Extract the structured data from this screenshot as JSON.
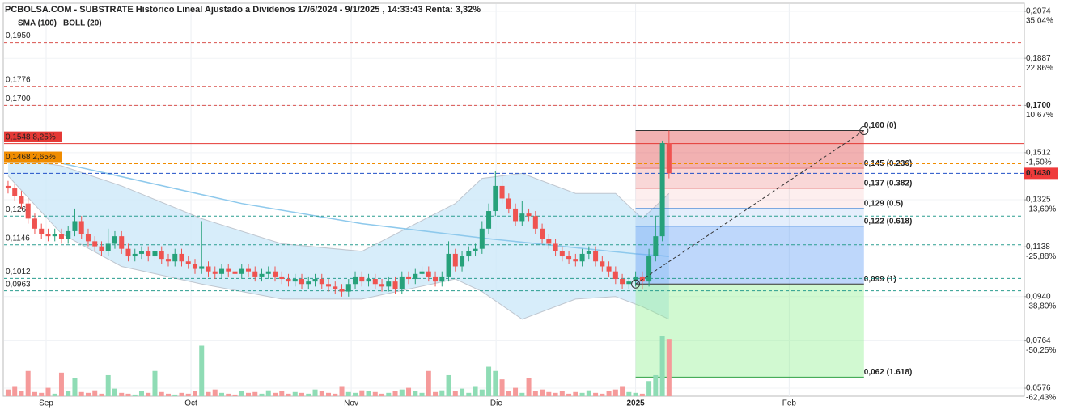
{
  "chart_data": {
    "type": "candlestick",
    "title": "PCBOLSA.COM - SUBSTRATE Histórico Lineal Ajustado a Dividenos 17/6/2024 - 9/1/2025 , 14:33:43 Renta: 3,32%",
    "x": [
      0,
      1,
      2,
      3,
      4,
      5,
      6,
      7,
      8,
      9,
      10,
      11,
      12,
      13,
      14,
      15,
      16,
      17,
      18,
      19,
      20,
      21,
      22,
      23,
      24,
      25,
      26,
      27,
      28,
      29,
      30,
      31,
      32,
      33,
      34,
      35,
      36,
      37,
      38,
      39,
      40,
      41,
      42,
      43,
      44,
      45,
      46,
      47,
      48,
      49,
      50,
      51,
      52,
      53,
      54,
      55,
      56,
      57,
      58,
      59,
      60,
      61,
      62,
      63,
      64,
      65,
      66,
      67,
      68,
      69,
      70,
      71,
      72,
      73,
      74,
      75,
      76,
      77,
      78,
      79,
      80,
      81,
      82,
      83,
      84,
      85,
      86,
      87,
      88,
      89,
      90,
      91,
      92,
      93,
      94,
      95,
      96,
      97,
      98,
      99
    ],
    "open": [
      0.138,
      0.137,
      0.134,
      0.131,
      0.125,
      0.121,
      0.119,
      0.118,
      0.119,
      0.117,
      0.12,
      0.124,
      0.119,
      0.116,
      0.114,
      0.112,
      0.115,
      0.118,
      0.113,
      0.11,
      0.111,
      0.112,
      0.11,
      0.112,
      0.109,
      0.108,
      0.111,
      0.108,
      0.107,
      0.105,
      0.106,
      0.104,
      0.103,
      0.105,
      0.104,
      0.103,
      0.105,
      0.104,
      0.102,
      0.103,
      0.104,
      0.102,
      0.101,
      0.1,
      0.101,
      0.099,
      0.1,
      0.101,
      0.099,
      0.098,
      0.097,
      0.096,
      0.099,
      0.102,
      0.1,
      0.101,
      0.099,
      0.098,
      0.1,
      0.097,
      0.102,
      0.101,
      0.103,
      0.104,
      0.102,
      0.1,
      0.102,
      0.111,
      0.106,
      0.11,
      0.112,
      0.113,
      0.121,
      0.128,
      0.138,
      0.133,
      0.129,
      0.124,
      0.127,
      0.126,
      0.121,
      0.117,
      0.115,
      0.112,
      0.11,
      0.109,
      0.108,
      0.111,
      0.112,
      0.108,
      0.106,
      0.104,
      0.101,
      0.099,
      0.1,
      0.102,
      0.1,
      0.11,
      0.118,
      0.155
    ],
    "high": [
      0.14,
      0.139,
      0.136,
      0.133,
      0.127,
      0.123,
      0.121,
      0.121,
      0.121,
      0.122,
      0.129,
      0.126,
      0.121,
      0.118,
      0.116,
      0.121,
      0.12,
      0.12,
      0.115,
      0.113,
      0.114,
      0.114,
      0.114,
      0.114,
      0.111,
      0.113,
      0.113,
      0.11,
      0.109,
      0.124,
      0.108,
      0.106,
      0.107,
      0.107,
      0.106,
      0.107,
      0.107,
      0.106,
      0.105,
      0.106,
      0.106,
      0.104,
      0.103,
      0.103,
      0.103,
      0.102,
      0.103,
      0.103,
      0.101,
      0.1,
      0.099,
      0.101,
      0.104,
      0.104,
      0.103,
      0.103,
      0.101,
      0.102,
      0.102,
      0.104,
      0.104,
      0.105,
      0.106,
      0.106,
      0.104,
      0.104,
      0.116,
      0.113,
      0.112,
      0.114,
      0.115,
      0.124,
      0.131,
      0.144,
      0.144,
      0.135,
      0.131,
      0.132,
      0.129,
      0.128,
      0.123,
      0.119,
      0.117,
      0.114,
      0.112,
      0.111,
      0.113,
      0.114,
      0.114,
      0.11,
      0.108,
      0.106,
      0.103,
      0.102,
      0.104,
      0.104,
      0.113,
      0.126,
      0.156,
      0.16
    ],
    "low": [
      0.135,
      0.132,
      0.129,
      0.123,
      0.119,
      0.117,
      0.116,
      0.116,
      0.115,
      0.115,
      0.118,
      0.117,
      0.114,
      0.112,
      0.11,
      0.11,
      0.113,
      0.111,
      0.108,
      0.108,
      0.109,
      0.108,
      0.108,
      0.107,
      0.106,
      0.106,
      0.106,
      0.105,
      0.103,
      0.103,
      0.102,
      0.101,
      0.101,
      0.102,
      0.101,
      0.101,
      0.102,
      0.1,
      0.1,
      0.101,
      0.1,
      0.099,
      0.098,
      0.098,
      0.097,
      0.097,
      0.098,
      0.097,
      0.096,
      0.095,
      0.094,
      0.094,
      0.097,
      0.098,
      0.098,
      0.097,
      0.096,
      0.096,
      0.095,
      0.095,
      0.099,
      0.099,
      0.101,
      0.1,
      0.098,
      0.098,
      0.1,
      0.104,
      0.104,
      0.108,
      0.11,
      0.111,
      0.119,
      0.126,
      0.131,
      0.127,
      0.122,
      0.122,
      0.124,
      0.119,
      0.115,
      0.113,
      0.11,
      0.108,
      0.107,
      0.106,
      0.106,
      0.109,
      0.106,
      0.104,
      0.102,
      0.099,
      0.097,
      0.097,
      0.098,
      0.097,
      0.098,
      0.108,
      0.116,
      0.141
    ],
    "close": [
      0.137,
      0.134,
      0.131,
      0.125,
      0.121,
      0.119,
      0.118,
      0.119,
      0.117,
      0.12,
      0.124,
      0.119,
      0.116,
      0.114,
      0.112,
      0.115,
      0.118,
      0.113,
      0.11,
      0.111,
      0.112,
      0.11,
      0.112,
      0.109,
      0.108,
      0.111,
      0.108,
      0.107,
      0.105,
      0.106,
      0.104,
      0.103,
      0.105,
      0.104,
      0.103,
      0.105,
      0.104,
      0.102,
      0.103,
      0.104,
      0.102,
      0.101,
      0.1,
      0.101,
      0.099,
      0.1,
      0.101,
      0.099,
      0.098,
      0.097,
      0.096,
      0.099,
      0.102,
      0.1,
      0.101,
      0.099,
      0.098,
      0.1,
      0.097,
      0.102,
      0.101,
      0.103,
      0.104,
      0.102,
      0.1,
      0.102,
      0.111,
      0.106,
      0.11,
      0.112,
      0.113,
      0.121,
      0.128,
      0.138,
      0.133,
      0.129,
      0.124,
      0.127,
      0.126,
      0.121,
      0.117,
      0.115,
      0.112,
      0.11,
      0.109,
      0.108,
      0.111,
      0.112,
      0.108,
      0.106,
      0.104,
      0.101,
      0.099,
      0.1,
      0.102,
      0.1,
      0.11,
      0.118,
      0.155,
      0.143
    ],
    "volume": [
      8,
      12,
      6,
      30,
      5,
      4,
      10,
      3,
      28,
      6,
      22,
      5,
      4,
      7,
      3,
      25,
      9,
      4,
      3,
      2,
      6,
      4,
      30,
      5,
      3,
      2,
      4,
      3,
      6,
      60,
      5,
      8,
      4,
      3,
      2,
      6,
      4,
      5,
      3,
      7,
      4,
      6,
      3,
      5,
      4,
      3,
      8,
      6,
      4,
      3,
      12,
      5,
      4,
      7,
      6,
      5,
      3,
      4,
      6,
      8,
      10,
      6,
      4,
      30,
      5,
      7,
      25,
      6,
      9,
      4,
      12,
      8,
      35,
      30,
      20,
      6,
      10,
      4,
      22,
      6,
      8,
      5,
      4,
      6,
      3,
      5,
      4,
      7,
      4,
      3,
      6,
      8,
      12,
      5,
      4,
      3,
      18,
      25,
      72,
      68
    ],
    "colors": {
      "up": "#26a17a",
      "down": "#ef5350",
      "up_volume": "#8fdcb5",
      "down_volume": "#f59a9a"
    },
    "sma": {
      "name": "SMA (100)",
      "color": "#8ec9ec",
      "x": [
        8,
        35,
        53,
        72,
        94,
        99
      ],
      "values": [
        0.147,
        0.131,
        0.123,
        0.117,
        0.111,
        0.11
      ]
    },
    "boll": {
      "name": "BOLL (20)",
      "color": "#bfc6cf",
      "fill": "#cde9f9",
      "x": [
        0,
        8,
        17,
        29,
        41,
        53,
        67,
        71,
        77,
        85,
        91,
        95,
        99
      ],
      "upper": [
        0.149,
        0.146,
        0.138,
        0.125,
        0.115,
        0.112,
        0.131,
        0.141,
        0.143,
        0.135,
        0.135,
        0.125,
        0.135
      ],
      "lower": [
        0.142,
        0.119,
        0.106,
        0.099,
        0.093,
        0.093,
        0.101,
        0.096,
        0.085,
        0.093,
        0.094,
        0.09,
        0.085
      ]
    },
    "xlim": [
      -0.6,
      152.1
    ],
    "ylim": [
      0.0544,
      0.2103
    ],
    "xticks": [
      {
        "value": 5.7,
        "label": "Sep"
      },
      {
        "value": 27.4,
        "label": "Oct"
      },
      {
        "value": 51.4,
        "label": "Nov"
      },
      {
        "value": 73.1,
        "label": "Dic"
      },
      {
        "value": 94,
        "label": "2025"
      },
      {
        "value": 117,
        "label": "Feb"
      }
    ],
    "yticks": [
      {
        "value": 0.2074,
        "label": "0,2074"
      },
      {
        "value": 0.1887,
        "label": "0,1887"
      },
      {
        "value": 0.17,
        "label": "0,1700"
      },
      {
        "value": 0.1512,
        "label": "0,1512"
      },
      {
        "value": 0.1325,
        "label": "0,1325"
      },
      {
        "value": 0.1138,
        "label": "0,1138"
      },
      {
        "value": 0.094,
        "label": "0,0940"
      },
      {
        "value": 0.0764,
        "label": "0,0764"
      },
      {
        "value": 0.0576,
        "label": "0,0576"
      }
    ],
    "ytick_percent": [
      {
        "value": 35.04,
        "label": "35,04%"
      },
      {
        "value": 22.86,
        "label": "22,86%"
      },
      {
        "value": 10.67,
        "label": "10,67%"
      },
      {
        "value": -1.5,
        "label": "-1,50%"
      },
      {
        "value": -13.69,
        "label": "-13,69%"
      },
      {
        "value": -25.88,
        "label": "-25,88%"
      },
      {
        "value": -38.8,
        "label": "-38,80%"
      },
      {
        "value": -50.25,
        "label": "-50,25%"
      },
      {
        "value": -62.43,
        "label": "-62,43%"
      }
    ],
    "levels": [
      {
        "value": 0.195,
        "label": "0,1950",
        "color": "#d9534f",
        "style": "dashed"
      },
      {
        "value": 0.1776,
        "label": "0,1776",
        "color": "#d9534f",
        "style": "dashed"
      },
      {
        "value": 0.17,
        "label": "0,1700",
        "color": "#d9534f",
        "style": "dashed"
      },
      {
        "value": 0.1548,
        "label": "0,1548  8,25%",
        "color": "#e53935",
        "style": "solid",
        "box": true
      },
      {
        "value": 0.1468,
        "label": "0,1468  2,65%",
        "color": "#f08c00",
        "style": "dashed",
        "box": true
      },
      {
        "value": 0.126,
        "label": "0,1260",
        "color": "#2a9d8f",
        "style": "dashed"
      },
      {
        "value": 0.1146,
        "label": "0,1146",
        "color": "#2a9d8f",
        "style": "dashed"
      },
      {
        "value": 0.1012,
        "label": "0,1012",
        "color": "#2a9d8f",
        "style": "dashed"
      },
      {
        "value": 0.0963,
        "label": "0,0963",
        "color": "#2a9d8f",
        "style": "dashed"
      }
    ],
    "current_price": {
      "value": 0.143,
      "label": "0,1430",
      "color": "#ef3b3b"
    },
    "fib": {
      "x": [
        94,
        128.2
      ],
      "levels": [
        {
          "value": 0.16,
          "label": "0,160 (0)",
          "color": "#e88080",
          "fill": "rgba(225,70,70,0.42)"
        },
        {
          "value": 0.145,
          "label": "0,145 (0.236)",
          "color": "#e88080",
          "fill": "rgba(235,110,110,0.28)"
        },
        {
          "value": 0.137,
          "label": "0,137 (0.382)",
          "color": "#e88080",
          "fill": "rgba(240,140,140,0.15)"
        },
        {
          "value": 0.129,
          "label": "0,129 (0.5)",
          "color": "#2f7fd8",
          "fill": "rgba(120,170,240,0.2)"
        },
        {
          "value": 0.122,
          "label": "0,122 (0.618)",
          "color": "#2f7fd8",
          "fill": "rgba(100,160,245,0.42)"
        },
        {
          "value": 0.099,
          "label": "0,099 (1)",
          "color": "#2ea043",
          "fill": "rgba(140,240,140,0.4)"
        },
        {
          "value": 0.062,
          "label": "0,062 (1.618)",
          "color": "#2ea043"
        }
      ]
    }
  }
}
